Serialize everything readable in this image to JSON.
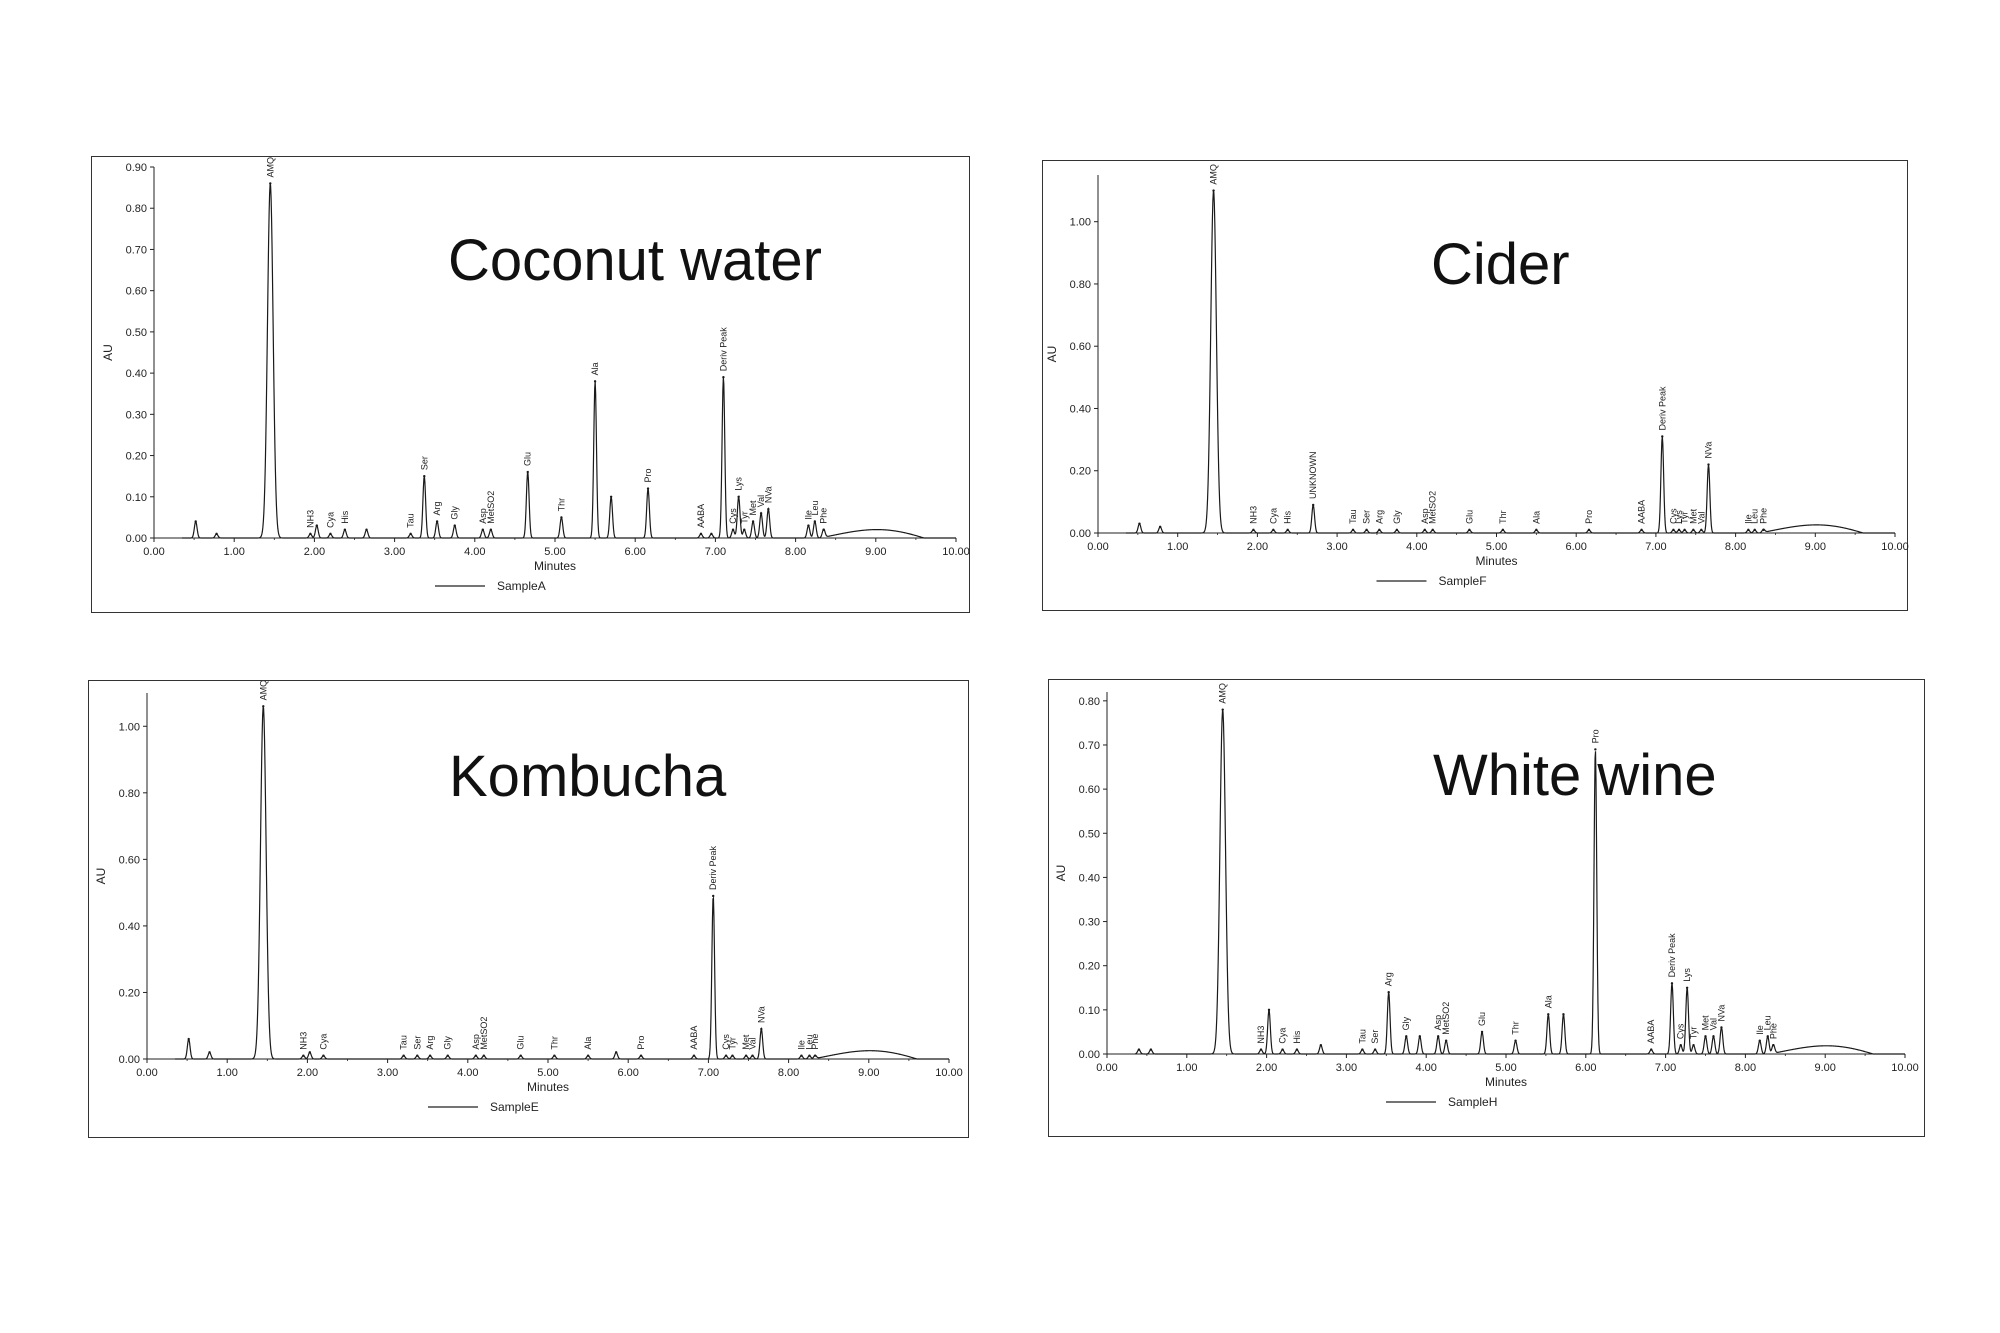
{
  "chart_data": [
    {
      "type": "line",
      "title": "Coconut water",
      "xlabel": "Minutes",
      "ylabel": "AU",
      "legend": "SampleA",
      "xlim": [
        0,
        10
      ],
      "ylim": [
        0,
        0.9
      ],
      "xticks": [
        "0.00",
        "1.00",
        "2.00",
        "3.00",
        "4.00",
        "5.00",
        "6.00",
        "7.00",
        "8.00",
        "9.00",
        "10.00"
      ],
      "yticks": [
        "0.00",
        "0.10",
        "0.20",
        "0.30",
        "0.40",
        "0.50",
        "0.60",
        "0.70",
        "0.80",
        "0.90"
      ],
      "peaks": [
        {
          "x": 0.52,
          "y": 0.04,
          "label": ""
        },
        {
          "x": 0.78,
          "y": 0.01,
          "label": ""
        },
        {
          "x": 1.45,
          "y": 0.86,
          "label": "AMQ"
        },
        {
          "x": 1.95,
          "y": 0.01,
          "label": "NH3"
        },
        {
          "x": 2.03,
          "y": 0.03,
          "label": ""
        },
        {
          "x": 2.2,
          "y": 0.01,
          "label": "Cya"
        },
        {
          "x": 2.38,
          "y": 0.02,
          "label": "His"
        },
        {
          "x": 2.65,
          "y": 0.02,
          "label": ""
        },
        {
          "x": 3.2,
          "y": 0.01,
          "label": "Tau"
        },
        {
          "x": 3.37,
          "y": 0.15,
          "label": "Ser"
        },
        {
          "x": 3.53,
          "y": 0.04,
          "label": "Arg"
        },
        {
          "x": 3.75,
          "y": 0.03,
          "label": "Gly"
        },
        {
          "x": 4.1,
          "y": 0.02,
          "label": "Asp"
        },
        {
          "x": 4.2,
          "y": 0.02,
          "label": "MetSO2"
        },
        {
          "x": 4.66,
          "y": 0.16,
          "label": "Glu"
        },
        {
          "x": 5.08,
          "y": 0.05,
          "label": "Thr"
        },
        {
          "x": 5.5,
          "y": 0.38,
          "label": "Ala"
        },
        {
          "x": 5.7,
          "y": 0.1,
          "label": ""
        },
        {
          "x": 6.16,
          "y": 0.12,
          "label": "Pro"
        },
        {
          "x": 6.82,
          "y": 0.01,
          "label": "AABA"
        },
        {
          "x": 6.95,
          "y": 0.01,
          "label": ""
        },
        {
          "x": 7.1,
          "y": 0.39,
          "label": "Deriv Peak"
        },
        {
          "x": 7.22,
          "y": 0.02,
          "label": "Cys"
        },
        {
          "x": 7.29,
          "y": 0.1,
          "label": "Lys"
        },
        {
          "x": 7.36,
          "y": 0.02,
          "label": "Tyr"
        },
        {
          "x": 7.47,
          "y": 0.04,
          "label": "Met"
        },
        {
          "x": 7.57,
          "y": 0.06,
          "label": "Val"
        },
        {
          "x": 7.66,
          "y": 0.07,
          "label": "NVa"
        },
        {
          "x": 8.16,
          "y": 0.03,
          "label": "Ile"
        },
        {
          "x": 8.24,
          "y": 0.04,
          "label": "Leu"
        },
        {
          "x": 8.35,
          "y": 0.02,
          "label": "Phe"
        }
      ]
    },
    {
      "type": "line",
      "title": "Cider",
      "xlabel": "Minutes",
      "ylabel": "AU",
      "legend": "SampleF",
      "xlim": [
        0,
        10
      ],
      "ylim": [
        0,
        1.15
      ],
      "xticks": [
        "0.00",
        "1.00",
        "2.00",
        "3.00",
        "4.00",
        "5.00",
        "6.00",
        "7.00",
        "8.00",
        "9.00",
        "10.00"
      ],
      "yticks": [
        "0.00",
        "0.20",
        "0.40",
        "0.60",
        "0.80",
        "1.00"
      ],
      "peaks": [
        {
          "x": 0.52,
          "y": 0.03,
          "label": ""
        },
        {
          "x": 0.78,
          "y": 0.02,
          "label": ""
        },
        {
          "x": 1.45,
          "y": 1.1,
          "label": "AMQ"
        },
        {
          "x": 1.95,
          "y": 0.01,
          "label": "NH3"
        },
        {
          "x": 2.2,
          "y": 0.01,
          "label": "Cya"
        },
        {
          "x": 2.38,
          "y": 0.01,
          "label": "His"
        },
        {
          "x": 2.7,
          "y": 0.09,
          "label": "UNKNOWN"
        },
        {
          "x": 3.2,
          "y": 0.01,
          "label": "Tau"
        },
        {
          "x": 3.37,
          "y": 0.01,
          "label": "Ser"
        },
        {
          "x": 3.53,
          "y": 0.01,
          "label": "Arg"
        },
        {
          "x": 3.75,
          "y": 0.01,
          "label": "Gly"
        },
        {
          "x": 4.1,
          "y": 0.01,
          "label": "Asp"
        },
        {
          "x": 4.2,
          "y": 0.01,
          "label": "MetSO2"
        },
        {
          "x": 4.66,
          "y": 0.01,
          "label": "Glu"
        },
        {
          "x": 5.08,
          "y": 0.01,
          "label": "Thr"
        },
        {
          "x": 5.5,
          "y": 0.01,
          "label": "Ala"
        },
        {
          "x": 6.16,
          "y": 0.01,
          "label": "Pro"
        },
        {
          "x": 6.82,
          "y": 0.01,
          "label": "AABA"
        },
        {
          "x": 7.08,
          "y": 0.31,
          "label": "Deriv Peak"
        },
        {
          "x": 7.22,
          "y": 0.01,
          "label": "Cys"
        },
        {
          "x": 7.29,
          "y": 0.01,
          "label": "Lys"
        },
        {
          "x": 7.36,
          "y": 0.01,
          "label": "Tyr"
        },
        {
          "x": 7.47,
          "y": 0.01,
          "label": "Met"
        },
        {
          "x": 7.57,
          "y": 0.01,
          "label": "Val"
        },
        {
          "x": 7.66,
          "y": 0.22,
          "label": "NVa"
        },
        {
          "x": 8.16,
          "y": 0.01,
          "label": "Ile"
        },
        {
          "x": 8.24,
          "y": 0.01,
          "label": "Leu"
        },
        {
          "x": 8.35,
          "y": 0.01,
          "label": "Phe"
        }
      ]
    },
    {
      "type": "line",
      "title": "Kombucha",
      "xlabel": "Minutes",
      "ylabel": "AU",
      "legend": "SampleE",
      "xlim": [
        0,
        10
      ],
      "ylim": [
        0,
        1.1
      ],
      "xticks": [
        "0.00",
        "1.00",
        "2.00",
        "3.00",
        "4.00",
        "5.00",
        "6.00",
        "7.00",
        "8.00",
        "9.00",
        "10.00"
      ],
      "yticks": [
        "0.00",
        "0.20",
        "0.40",
        "0.60",
        "0.80",
        "1.00"
      ],
      "peaks": [
        {
          "x": 0.52,
          "y": 0.06,
          "label": ""
        },
        {
          "x": 0.78,
          "y": 0.02,
          "label": ""
        },
        {
          "x": 1.45,
          "y": 1.06,
          "label": "AMQ"
        },
        {
          "x": 1.95,
          "y": 0.01,
          "label": "NH3"
        },
        {
          "x": 2.03,
          "y": 0.02,
          "label": ""
        },
        {
          "x": 2.2,
          "y": 0.01,
          "label": "Cya"
        },
        {
          "x": 3.2,
          "y": 0.01,
          "label": "Tau"
        },
        {
          "x": 3.37,
          "y": 0.01,
          "label": "Ser"
        },
        {
          "x": 3.53,
          "y": 0.01,
          "label": "Arg"
        },
        {
          "x": 3.75,
          "y": 0.01,
          "label": "Gly"
        },
        {
          "x": 4.1,
          "y": 0.01,
          "label": "Asp"
        },
        {
          "x": 4.2,
          "y": 0.01,
          "label": "MetSO2"
        },
        {
          "x": 4.66,
          "y": 0.01,
          "label": "Glu"
        },
        {
          "x": 5.08,
          "y": 0.01,
          "label": "Thr"
        },
        {
          "x": 5.5,
          "y": 0.01,
          "label": "Ala"
        },
        {
          "x": 5.85,
          "y": 0.02,
          "label": ""
        },
        {
          "x": 6.16,
          "y": 0.01,
          "label": "Pro"
        },
        {
          "x": 6.82,
          "y": 0.01,
          "label": "AABA"
        },
        {
          "x": 7.06,
          "y": 0.49,
          "label": "Deriv Peak"
        },
        {
          "x": 7.22,
          "y": 0.01,
          "label": "Cys"
        },
        {
          "x": 7.3,
          "y": 0.01,
          "label": "Tyr"
        },
        {
          "x": 7.47,
          "y": 0.01,
          "label": "Met"
        },
        {
          "x": 7.55,
          "y": 0.01,
          "label": "Val"
        },
        {
          "x": 7.66,
          "y": 0.09,
          "label": "NVa"
        },
        {
          "x": 8.16,
          "y": 0.01,
          "label": "Ile"
        },
        {
          "x": 8.26,
          "y": 0.01,
          "label": "Leu"
        },
        {
          "x": 8.33,
          "y": 0.01,
          "label": "Phe"
        }
      ]
    },
    {
      "type": "line",
      "title": "White wine",
      "xlabel": "Minutes",
      "ylabel": "AU",
      "legend": "SampleH",
      "xlim": [
        0,
        10
      ],
      "ylim": [
        0,
        0.82
      ],
      "xticks": [
        "0.00",
        "1.00",
        "2.00",
        "3.00",
        "4.00",
        "5.00",
        "6.00",
        "7.00",
        "8.00",
        "9.00",
        "10.00"
      ],
      "yticks": [
        "0.00",
        "0.10",
        "0.20",
        "0.30",
        "0.40",
        "0.50",
        "0.60",
        "0.70",
        "0.80"
      ],
      "peaks": [
        {
          "x": 0.4,
          "y": 0.01,
          "label": ""
        },
        {
          "x": 0.55,
          "y": 0.01,
          "label": ""
        },
        {
          "x": 1.45,
          "y": 0.78,
          "label": "AMQ"
        },
        {
          "x": 1.93,
          "y": 0.01,
          "label": "NH3"
        },
        {
          "x": 2.03,
          "y": 0.1,
          "label": ""
        },
        {
          "x": 2.2,
          "y": 0.01,
          "label": "Cya"
        },
        {
          "x": 2.38,
          "y": 0.01,
          "label": "His"
        },
        {
          "x": 2.68,
          "y": 0.02,
          "label": ""
        },
        {
          "x": 3.2,
          "y": 0.01,
          "label": "Tau"
        },
        {
          "x": 3.36,
          "y": 0.01,
          "label": "Ser"
        },
        {
          "x": 3.53,
          "y": 0.14,
          "label": "Arg"
        },
        {
          "x": 3.75,
          "y": 0.04,
          "label": "Gly"
        },
        {
          "x": 3.92,
          "y": 0.04,
          "label": ""
        },
        {
          "x": 4.15,
          "y": 0.04,
          "label": "Asp"
        },
        {
          "x": 4.25,
          "y": 0.03,
          "label": "MetSO2"
        },
        {
          "x": 4.7,
          "y": 0.05,
          "label": "Glu"
        },
        {
          "x": 5.12,
          "y": 0.03,
          "label": "Thr"
        },
        {
          "x": 5.53,
          "y": 0.09,
          "label": "Ala"
        },
        {
          "x": 5.72,
          "y": 0.09,
          "label": ""
        },
        {
          "x": 6.12,
          "y": 0.69,
          "label": "Pro"
        },
        {
          "x": 6.82,
          "y": 0.01,
          "label": "AABA"
        },
        {
          "x": 7.08,
          "y": 0.16,
          "label": "Deriv Peak"
        },
        {
          "x": 7.19,
          "y": 0.02,
          "label": "Cys"
        },
        {
          "x": 7.27,
          "y": 0.15,
          "label": "Lys"
        },
        {
          "x": 7.35,
          "y": 0.02,
          "label": "Tyr"
        },
        {
          "x": 7.5,
          "y": 0.04,
          "label": "Met"
        },
        {
          "x": 7.6,
          "y": 0.04,
          "label": "Val"
        },
        {
          "x": 7.7,
          "y": 0.06,
          "label": "NVa"
        },
        {
          "x": 8.18,
          "y": 0.03,
          "label": "Ile"
        },
        {
          "x": 8.28,
          "y": 0.04,
          "label": "Leu"
        },
        {
          "x": 8.35,
          "y": 0.02,
          "label": "Phe"
        }
      ]
    }
  ]
}
